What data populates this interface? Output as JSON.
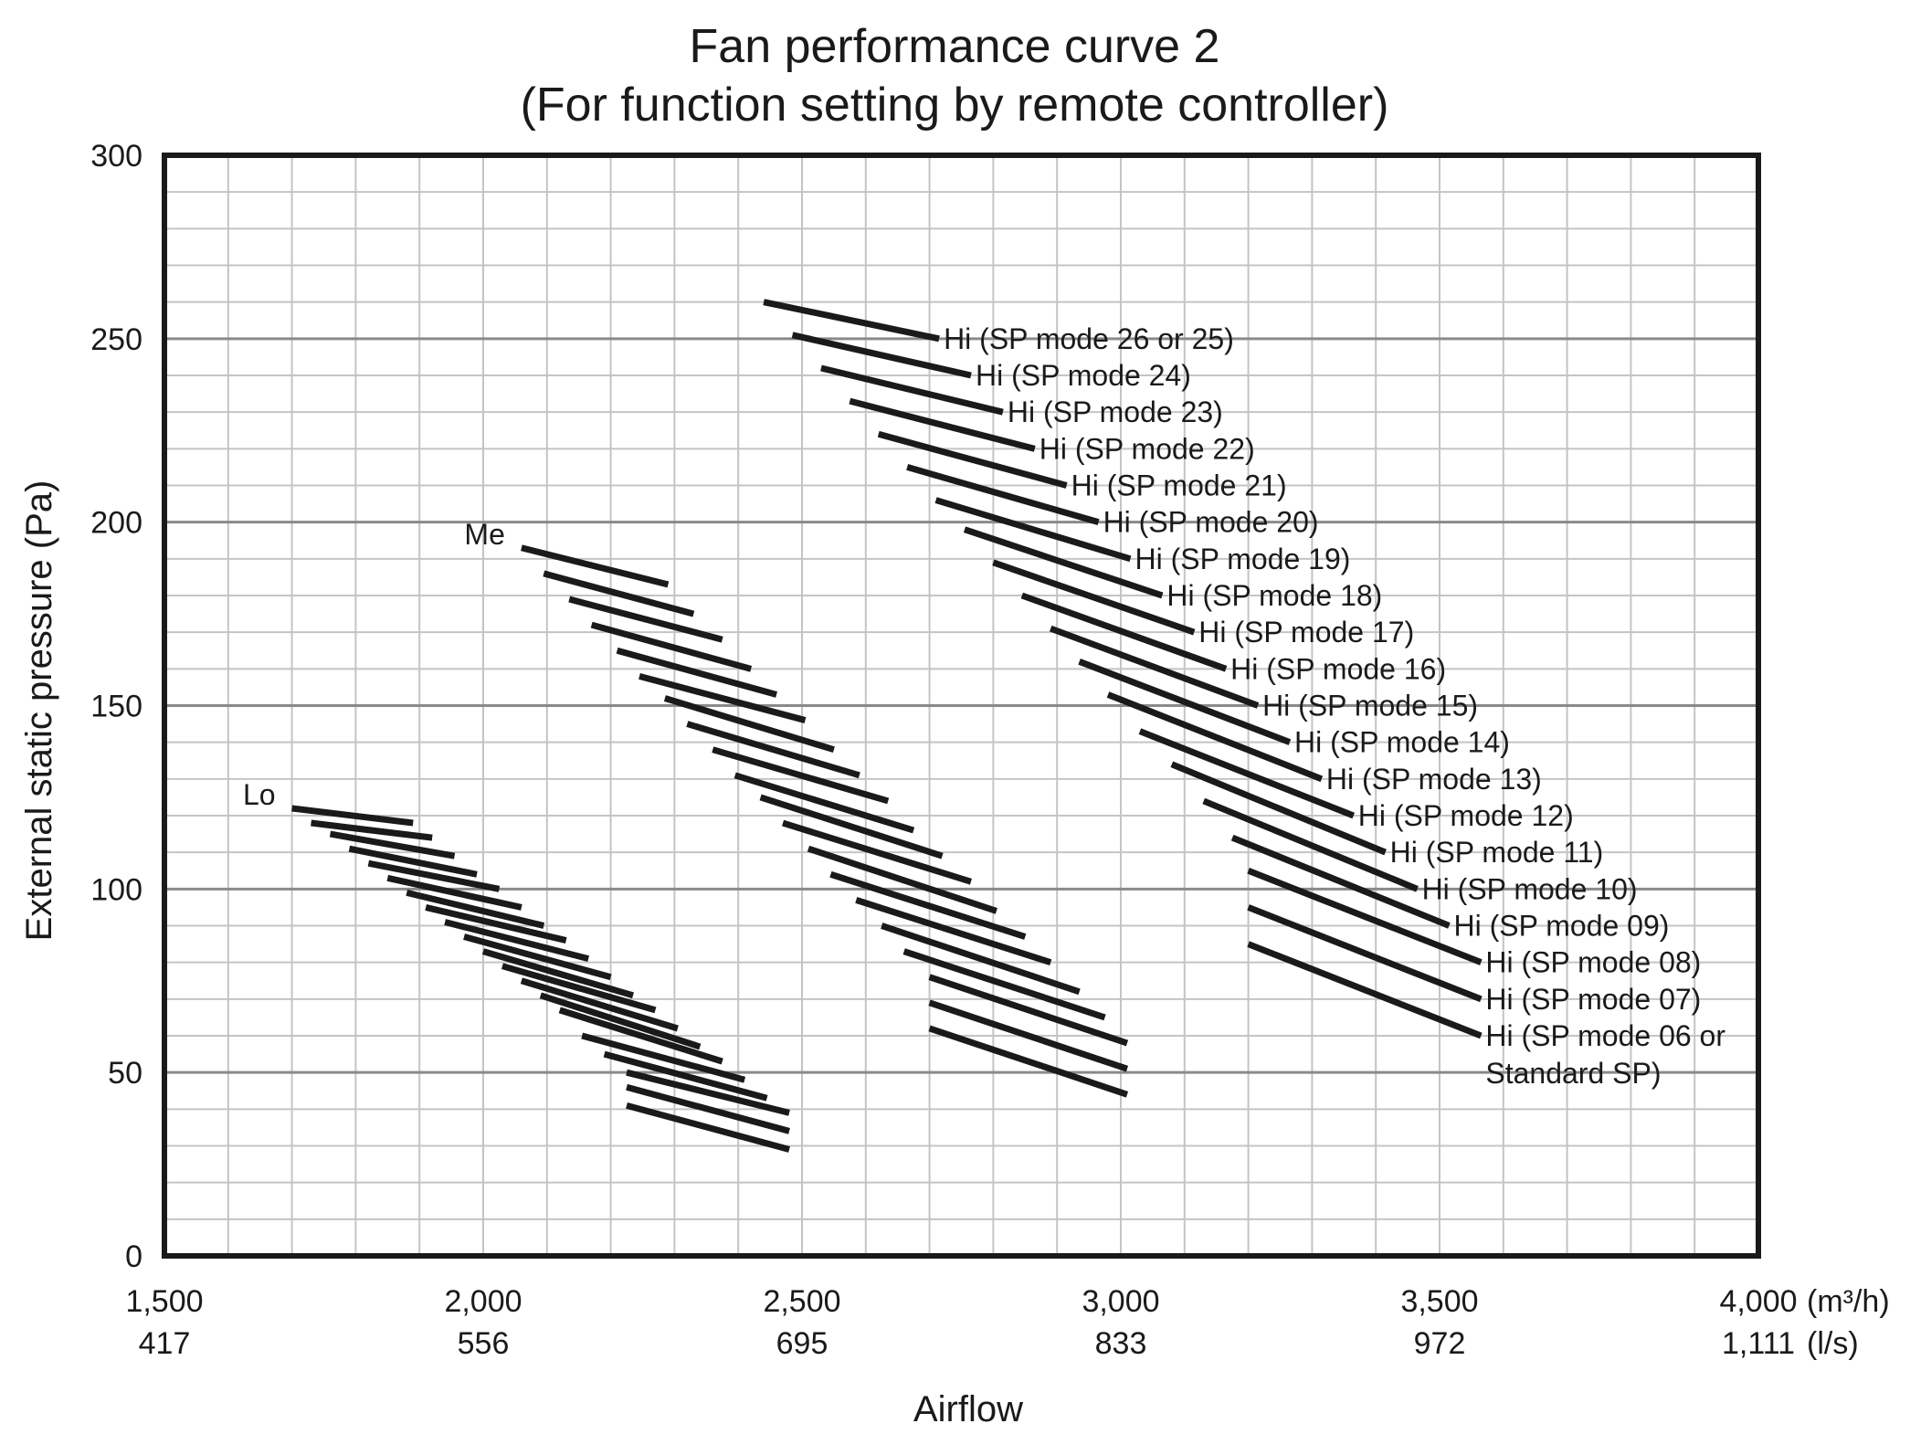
{
  "chart_data": {
    "type": "line",
    "title": "Fan performance curve 2",
    "subtitle": "(For function setting by remote controller)",
    "xlabel": "Airflow",
    "ylabel": "External static pressure (Pa)",
    "xlim": [
      1500,
      4000
    ],
    "ylim": [
      0,
      300
    ],
    "x_unit": "(m³/h)",
    "x_unit_secondary": "(l/s)",
    "x_ticks": [
      {
        "value": 1500,
        "label": "1,500",
        "label_secondary": "417"
      },
      {
        "value": 2000,
        "label": "2,000",
        "label_secondary": "556"
      },
      {
        "value": 2500,
        "label": "2,500",
        "label_secondary": "695"
      },
      {
        "value": 3000,
        "label": "3,000",
        "label_secondary": "833"
      },
      {
        "value": 3500,
        "label": "3,500",
        "label_secondary": "972"
      },
      {
        "value": 4000,
        "label": "4,000",
        "label_secondary": "1,111"
      }
    ],
    "y_ticks": [
      {
        "value": 0,
        "label": "0"
      },
      {
        "value": 50,
        "label": "50"
      },
      {
        "value": 100,
        "label": "100"
      },
      {
        "value": 150,
        "label": "150"
      },
      {
        "value": 200,
        "label": "200"
      },
      {
        "value": 250,
        "label": "250"
      },
      {
        "value": 300,
        "label": "300"
      }
    ],
    "grid": true,
    "groups": [
      {
        "name": "Lo",
        "series": [
          {
            "x": [
              1700,
              1890
            ],
            "y": [
              122,
              118
            ]
          },
          {
            "x": [
              1730,
              1920
            ],
            "y": [
              118,
              114
            ]
          },
          {
            "x": [
              1760,
              1955
            ],
            "y": [
              115,
              109
            ]
          },
          {
            "x": [
              1790,
              1990
            ],
            "y": [
              111,
              104
            ]
          },
          {
            "x": [
              1820,
              2025
            ],
            "y": [
              107,
              100
            ]
          },
          {
            "x": [
              1850,
              2060
            ],
            "y": [
              103,
              95
            ]
          },
          {
            "x": [
              1880,
              2095
            ],
            "y": [
              99,
              90
            ]
          },
          {
            "x": [
              1910,
              2130
            ],
            "y": [
              95,
              86
            ]
          },
          {
            "x": [
              1940,
              2165
            ],
            "y": [
              91,
              81
            ]
          },
          {
            "x": [
              1970,
              2200
            ],
            "y": [
              87,
              76
            ]
          },
          {
            "x": [
              2000,
              2235
            ],
            "y": [
              83,
              71
            ]
          },
          {
            "x": [
              2030,
              2270
            ],
            "y": [
              79,
              67
            ]
          },
          {
            "x": [
              2060,
              2305
            ],
            "y": [
              75,
              62
            ]
          },
          {
            "x": [
              2090,
              2340
            ],
            "y": [
              71,
              57
            ]
          },
          {
            "x": [
              2120,
              2375
            ],
            "y": [
              67,
              53
            ]
          },
          {
            "x": [
              2155,
              2410
            ],
            "y": [
              60,
              48
            ]
          },
          {
            "x": [
              2190,
              2445
            ],
            "y": [
              55,
              43
            ]
          },
          {
            "x": [
              2225,
              2480
            ],
            "y": [
              50,
              39
            ]
          },
          {
            "x": [
              2225,
              2480
            ],
            "y": [
              46,
              34
            ]
          },
          {
            "x": [
              2225,
              2480
            ],
            "y": [
              41,
              29
            ]
          }
        ]
      },
      {
        "name": "Me",
        "series": [
          {
            "x": [
              2060,
              2290
            ],
            "y": [
              193,
              183
            ]
          },
          {
            "x": [
              2095,
              2330
            ],
            "y": [
              186,
              175
            ]
          },
          {
            "x": [
              2135,
              2375
            ],
            "y": [
              179,
              168
            ]
          },
          {
            "x": [
              2170,
              2420
            ],
            "y": [
              172,
              160
            ]
          },
          {
            "x": [
              2210,
              2460
            ],
            "y": [
              165,
              153
            ]
          },
          {
            "x": [
              2245,
              2505
            ],
            "y": [
              158,
              146
            ]
          },
          {
            "x": [
              2285,
              2550
            ],
            "y": [
              152,
              138
            ]
          },
          {
            "x": [
              2320,
              2590
            ],
            "y": [
              145,
              131
            ]
          },
          {
            "x": [
              2360,
              2635
            ],
            "y": [
              138,
              124
            ]
          },
          {
            "x": [
              2395,
              2675
            ],
            "y": [
              131,
              116
            ]
          },
          {
            "x": [
              2435,
              2720
            ],
            "y": [
              125,
              109
            ]
          },
          {
            "x": [
              2470,
              2765
            ],
            "y": [
              118,
              102
            ]
          },
          {
            "x": [
              2510,
              2805
            ],
            "y": [
              111,
              94
            ]
          },
          {
            "x": [
              2545,
              2850
            ],
            "y": [
              104,
              87
            ]
          },
          {
            "x": [
              2585,
              2890
            ],
            "y": [
              97,
              80
            ]
          },
          {
            "x": [
              2625,
              2935
            ],
            "y": [
              90,
              72
            ]
          },
          {
            "x": [
              2660,
              2975
            ],
            "y": [
              83,
              65
            ]
          },
          {
            "x": [
              2700,
              3010
            ],
            "y": [
              76,
              58
            ]
          },
          {
            "x": [
              2700,
              3010
            ],
            "y": [
              69,
              51
            ]
          },
          {
            "x": [
              2700,
              3010
            ],
            "y": [
              62,
              44
            ]
          }
        ]
      },
      {
        "name": "Hi",
        "series": [
          {
            "name": "Hi (SP mode 26 or 25)",
            "x": [
              2440,
              2715
            ],
            "y": [
              260,
              250
            ]
          },
          {
            "name": "Hi (SP mode 24)",
            "x": [
              2485,
              2765
            ],
            "y": [
              251,
              240
            ]
          },
          {
            "name": "Hi (SP mode 23)",
            "x": [
              2530,
              2815
            ],
            "y": [
              242,
              230
            ]
          },
          {
            "name": "Hi (SP mode 22)",
            "x": [
              2575,
              2865
            ],
            "y": [
              233,
              220
            ]
          },
          {
            "name": "Hi (SP mode 21)",
            "x": [
              2620,
              2915
            ],
            "y": [
              224,
              210
            ]
          },
          {
            "name": "Hi (SP mode 20)",
            "x": [
              2665,
              2965
            ],
            "y": [
              215,
              200
            ]
          },
          {
            "name": "Hi (SP mode 19)",
            "x": [
              2710,
              3015
            ],
            "y": [
              206,
              190
            ]
          },
          {
            "name": "Hi (SP mode 18)",
            "x": [
              2755,
              3065
            ],
            "y": [
              198,
              180
            ]
          },
          {
            "name": "Hi (SP mode 17)",
            "x": [
              2800,
              3115
            ],
            "y": [
              189,
              170
            ]
          },
          {
            "name": "Hi (SP mode 16)",
            "x": [
              2845,
              3165
            ],
            "y": [
              180,
              160
            ]
          },
          {
            "name": "Hi (SP mode 15)",
            "x": [
              2890,
              3215
            ],
            "y": [
              171,
              150
            ]
          },
          {
            "name": "Hi (SP mode 14)",
            "x": [
              2935,
              3265
            ],
            "y": [
              162,
              140
            ]
          },
          {
            "name": "Hi (SP mode 13)",
            "x": [
              2980,
              3315
            ],
            "y": [
              153,
              130
            ]
          },
          {
            "name": "Hi (SP mode 12)",
            "x": [
              3030,
              3365
            ],
            "y": [
              143,
              120
            ]
          },
          {
            "name": "Hi (SP mode 11)",
            "x": [
              3080,
              3415
            ],
            "y": [
              134,
              110
            ]
          },
          {
            "name": "Hi (SP mode 10)",
            "x": [
              3130,
              3465
            ],
            "y": [
              124,
              100
            ]
          },
          {
            "name": "Hi (SP mode 09)",
            "x": [
              3175,
              3515
            ],
            "y": [
              114,
              90
            ]
          },
          {
            "name": "Hi (SP mode 08)",
            "x": [
              3200,
              3565
            ],
            "y": [
              105,
              80
            ]
          },
          {
            "name": "Hi (SP mode 07)",
            "x": [
              3200,
              3565
            ],
            "y": [
              95,
              70
            ]
          },
          {
            "name": "Hi (SP mode 06 or Standard SP)",
            "x": [
              3200,
              3565
            ],
            "y": [
              85,
              60
            ]
          }
        ]
      }
    ],
    "hi_label_last_line2": "Standard SP)",
    "hi_label_last_line1": "Hi (SP mode 06 or"
  },
  "colors": {
    "curve": "#1a1a1a",
    "grid": "#c4c4c4",
    "grid_major": "#8a8a8a",
    "axis": "#1a1a1a",
    "text": "#1a1a1a"
  }
}
